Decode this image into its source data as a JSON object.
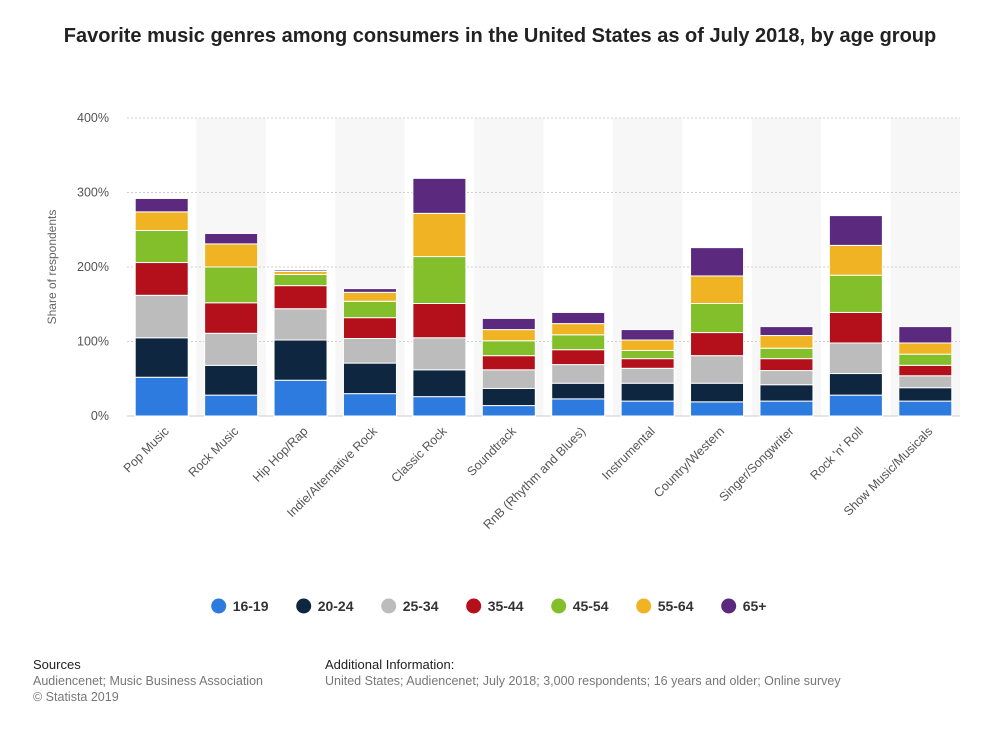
{
  "chart_data": {
    "type": "bar",
    "stacked": true,
    "title": "Favorite music genres among consumers in the United States as of July 2018, by age group",
    "xlabel": "",
    "ylabel": "Share of respondents",
    "ylim": [
      0,
      400
    ],
    "yticks": [
      "0%",
      "100%",
      "200%",
      "300%",
      "400%"
    ],
    "grid": true,
    "legend_position": "bottom",
    "categories": [
      "Pop Music",
      "Rock Music",
      "Hip Hop/Rap",
      "Indie/Alternative Rock",
      "Classic Rock",
      "Soundtrack",
      "RnB (Rhythm and Blues)",
      "Instrumental",
      "Country/Western",
      "Singer/Songwriter",
      "Rock 'n' Roll",
      "Show Music/Musicals"
    ],
    "series": [
      {
        "name": "16-19",
        "color": "#2e7be0",
        "values": [
          52,
          28,
          48,
          30,
          26,
          14,
          23,
          20,
          19,
          20,
          28,
          20
        ]
      },
      {
        "name": "20-24",
        "color": "#0f2640",
        "values": [
          53,
          40,
          54,
          41,
          36,
          23,
          21,
          24,
          25,
          22,
          29,
          18
        ]
      },
      {
        "name": "25-34",
        "color": "#bcbcbc",
        "values": [
          57,
          43,
          42,
          33,
          43,
          25,
          25,
          20,
          37,
          19,
          41,
          16
        ]
      },
      {
        "name": "35-44",
        "color": "#b3101b",
        "values": [
          44,
          41,
          31,
          28,
          46,
          19,
          20,
          13,
          31,
          16,
          41,
          14
        ]
      },
      {
        "name": "45-54",
        "color": "#82bf2a",
        "values": [
          43,
          48,
          15,
          22,
          63,
          20,
          20,
          11,
          39,
          14,
          50,
          15
        ]
      },
      {
        "name": "55-64",
        "color": "#f0b323",
        "values": [
          25,
          31,
          4,
          12,
          58,
          15,
          15,
          14,
          37,
          17,
          40,
          15
        ]
      },
      {
        "name": "65+",
        "color": "#5b2a7e",
        "values": [
          18,
          14,
          2,
          5,
          47,
          15,
          15,
          14,
          38,
          12,
          40,
          22
        ]
      }
    ]
  },
  "footer": {
    "sources_heading": "Sources",
    "sources_line1": "Audiencenet; Music Business Association",
    "sources_line2": "© Statista 2019",
    "additional_heading": "Additional Information:",
    "additional_text": "United States; Audiencenet; July 2018; 3,000 respondents; 16 years and older; Online survey"
  }
}
